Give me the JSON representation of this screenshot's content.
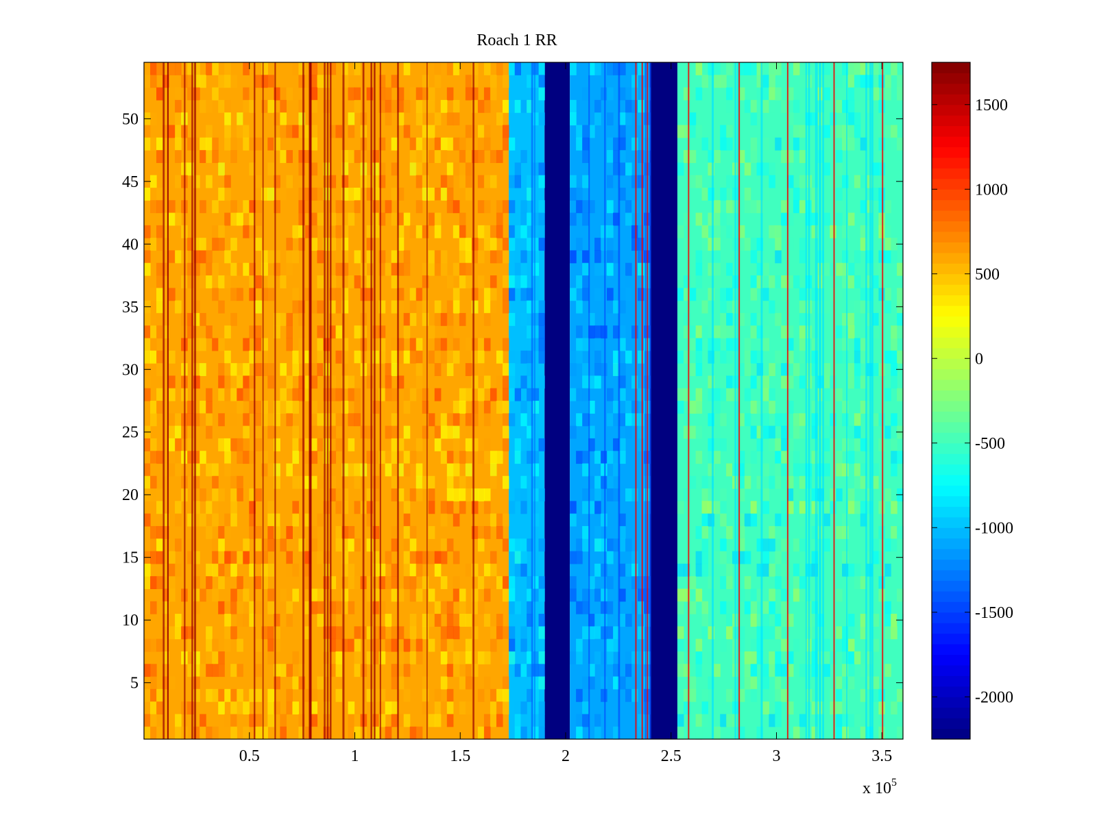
{
  "chart_data": {
    "type": "heatmap",
    "title": "Roach 1 RR",
    "x_multiplier_label": {
      "base": "x 10",
      "exponent": "5"
    },
    "x_range": [
      0,
      360000
    ],
    "y_range": [
      0.5,
      54.5
    ],
    "x_ticks": [
      0.5,
      1,
      1.5,
      2,
      2.5,
      3,
      3.5
    ],
    "x_tick_labels": [
      "0.5",
      "1",
      "1.5",
      "2",
      "2.5",
      "3",
      "3.5"
    ],
    "y_ticks": [
      5,
      10,
      15,
      20,
      25,
      30,
      35,
      40,
      45,
      50
    ],
    "y_tick_labels": [
      "5",
      "10",
      "15",
      "20",
      "25",
      "30",
      "35",
      "40",
      "45",
      "50"
    ],
    "colorbar": {
      "colormap": "jet",
      "range": [
        -2250,
        1750
      ],
      "ticks": [
        -2000,
        -1500,
        -1000,
        -500,
        0,
        500,
        1000,
        1500
      ],
      "tick_labels": [
        "-2000",
        "-1500",
        "-1000",
        "-500",
        "0",
        "500",
        "1000",
        "1500"
      ]
    },
    "regions": [
      {
        "x_start": 0,
        "x_end": 173000,
        "approx_value": 600
      },
      {
        "x_start": 173000,
        "x_end": 190000,
        "approx_value": -1000
      },
      {
        "x_start": 190000,
        "x_end": 202000,
        "approx_value": -2250
      },
      {
        "x_start": 202000,
        "x_end": 240000,
        "approx_value": -1100
      },
      {
        "x_start": 240000,
        "x_end": 253000,
        "approx_value": -2250
      },
      {
        "x_start": 253000,
        "x_end": 360000,
        "approx_value": -500
      }
    ],
    "grid": false
  }
}
